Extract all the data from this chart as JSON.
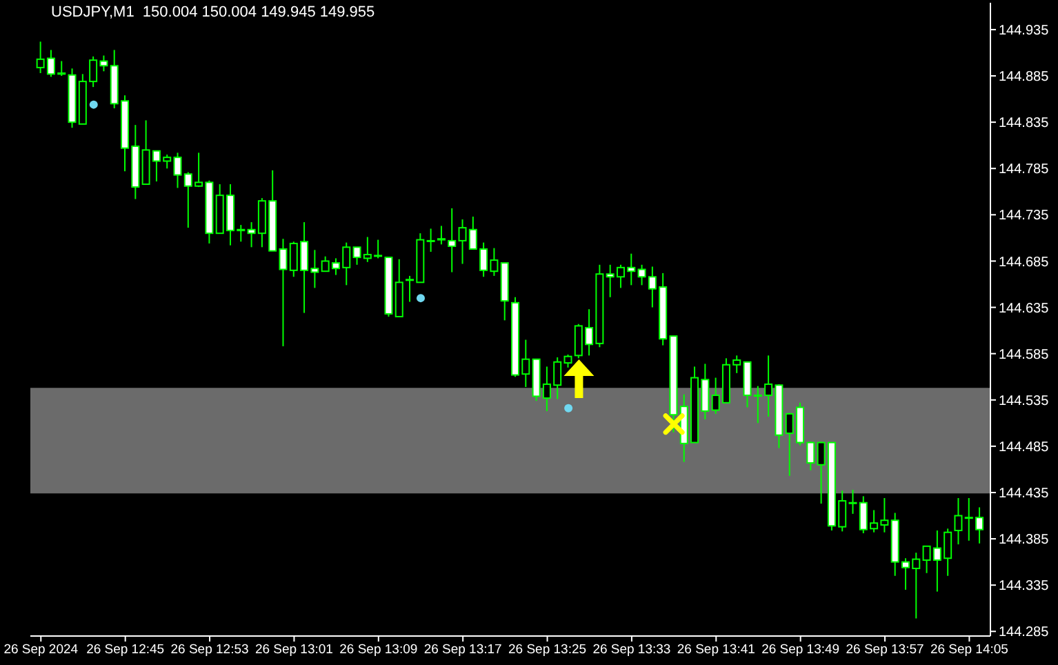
{
  "chart_data": {
    "type": "candlestick",
    "title": "USDJPY,M1  150.004 150.004 149.945 149.955",
    "color": "#00ff00",
    "x": [
      "2024-09-26T12:37",
      "2024-09-26T12:38",
      "2024-09-26T12:39",
      "2024-09-26T12:40",
      "2024-09-26T12:41",
      "2024-09-26T12:42",
      "2024-09-26T12:43",
      "2024-09-26T12:44",
      "2024-09-26T12:45",
      "2024-09-26T12:46",
      "2024-09-26T12:47",
      "2024-09-26T12:48",
      "2024-09-26T12:49",
      "2024-09-26T12:50",
      "2024-09-26T12:51",
      "2024-09-26T12:52",
      "2024-09-26T12:53",
      "2024-09-26T12:54",
      "2024-09-26T12:55",
      "2024-09-26T12:56",
      "2024-09-26T12:57",
      "2024-09-26T12:58",
      "2024-09-26T12:59",
      "2024-09-26T13:00",
      "2024-09-26T13:01",
      "2024-09-26T13:02",
      "2024-09-26T13:03",
      "2024-09-26T13:04",
      "2024-09-26T13:05",
      "2024-09-26T13:06",
      "2024-09-26T13:07",
      "2024-09-26T13:08",
      "2024-09-26T13:09",
      "2024-09-26T13:10",
      "2024-09-26T13:11",
      "2024-09-26T13:12",
      "2024-09-26T13:13",
      "2024-09-26T13:14",
      "2024-09-26T13:15",
      "2024-09-26T13:16",
      "2024-09-26T13:17",
      "2024-09-26T13:18",
      "2024-09-26T13:19",
      "2024-09-26T13:20",
      "2024-09-26T13:21",
      "2024-09-26T13:22",
      "2024-09-26T13:23",
      "2024-09-26T13:24",
      "2024-09-26T13:25",
      "2024-09-26T13:26",
      "2024-09-26T13:27",
      "2024-09-26T13:28",
      "2024-09-26T13:29",
      "2024-09-26T13:30",
      "2024-09-26T13:31",
      "2024-09-26T13:32",
      "2024-09-26T13:33",
      "2024-09-26T13:34",
      "2024-09-26T13:35",
      "2024-09-26T13:36",
      "2024-09-26T13:37",
      "2024-09-26T13:38",
      "2024-09-26T13:39",
      "2024-09-26T13:40",
      "2024-09-26T13:41",
      "2024-09-26T13:42",
      "2024-09-26T13:43",
      "2024-09-26T13:44",
      "2024-09-26T13:45",
      "2024-09-26T13:46",
      "2024-09-26T13:47",
      "2024-09-26T13:48",
      "2024-09-26T13:49",
      "2024-09-26T13:50",
      "2024-09-26T13:51",
      "2024-09-26T13:52",
      "2024-09-26T13:53",
      "2024-09-26T13:54",
      "2024-09-26T13:55",
      "2024-09-26T13:56",
      "2024-09-26T13:57",
      "2024-09-26T13:58",
      "2024-09-26T13:59",
      "2024-09-26T14:00",
      "2024-09-26T14:01",
      "2024-09-26T14:02",
      "2024-09-26T14:03",
      "2024-09-26T14:04",
      "2024-09-26T14:05",
      "2024-09-26T14:06"
    ],
    "ohlc": [
      [
        144.894,
        144.922,
        144.888,
        144.903
      ],
      [
        144.904,
        144.913,
        144.884,
        144.887
      ],
      [
        144.887,
        144.901,
        144.885,
        144.888
      ],
      [
        144.886,
        144.893,
        144.829,
        144.835
      ],
      [
        144.833,
        144.887,
        144.833,
        144.879
      ],
      [
        144.879,
        144.906,
        144.873,
        144.902
      ],
      [
        144.901,
        144.907,
        144.89,
        144.896
      ],
      [
        144.896,
        144.913,
        144.85,
        144.855
      ],
      [
        144.858,
        144.864,
        144.782,
        144.807
      ],
      [
        144.809,
        144.832,
        144.752,
        144.765
      ],
      [
        144.768,
        144.837,
        144.768,
        144.805
      ],
      [
        144.804,
        144.804,
        144.771,
        144.793
      ],
      [
        144.793,
        144.8,
        144.785,
        144.797
      ],
      [
        144.797,
        144.802,
        144.764,
        144.778
      ],
      [
        144.779,
        144.781,
        144.721,
        144.766
      ],
      [
        144.766,
        144.802,
        144.765,
        144.77
      ],
      [
        144.77,
        144.772,
        144.704,
        144.715
      ],
      [
        144.715,
        144.768,
        144.715,
        144.756
      ],
      [
        144.756,
        144.768,
        144.702,
        144.718
      ],
      [
        144.718,
        144.724,
        144.706,
        144.719
      ],
      [
        144.719,
        144.727,
        144.7,
        144.715
      ],
      [
        144.715,
        144.753,
        144.7,
        144.75
      ],
      [
        144.75,
        144.783,
        144.696,
        144.696
      ],
      [
        144.698,
        144.709,
        144.593,
        144.676
      ],
      [
        144.675,
        144.706,
        144.668,
        144.704
      ],
      [
        144.706,
        144.727,
        144.629,
        144.675
      ],
      [
        144.677,
        144.697,
        144.656,
        144.673
      ],
      [
        144.674,
        144.69,
        144.674,
        144.685
      ],
      [
        144.683,
        144.688,
        144.67,
        144.677
      ],
      [
        144.678,
        144.705,
        144.659,
        144.7
      ],
      [
        144.7,
        144.7,
        144.681,
        144.689
      ],
      [
        144.688,
        144.711,
        144.684,
        144.692
      ],
      [
        144.691,
        144.708,
        144.688,
        144.691
      ],
      [
        144.689,
        144.689,
        144.625,
        144.628
      ],
      [
        144.625,
        144.687,
        144.625,
        144.662
      ],
      [
        144.665,
        144.669,
        144.641,
        144.665
      ],
      [
        144.662,
        144.715,
        144.662,
        144.708
      ],
      [
        144.707,
        144.72,
        144.695,
        144.707
      ],
      [
        144.708,
        144.723,
        144.703,
        144.709
      ],
      [
        144.707,
        144.742,
        144.673,
        144.701
      ],
      [
        144.707,
        144.73,
        144.682,
        144.721
      ],
      [
        144.719,
        144.733,
        144.698,
        144.698
      ],
      [
        144.698,
        144.705,
        144.668,
        144.675
      ],
      [
        144.674,
        144.699,
        144.669,
        144.686
      ],
      [
        144.683,
        144.683,
        144.621,
        144.642
      ],
      [
        144.64,
        144.646,
        144.56,
        144.562
      ],
      [
        144.563,
        144.6,
        144.549,
        144.579
      ],
      [
        144.579,
        144.579,
        144.534,
        144.539
      ],
      [
        144.537,
        144.571,
        144.523,
        144.552
      ],
      [
        144.551,
        144.581,
        144.536,
        144.576
      ],
      [
        144.575,
        144.584,
        144.57,
        144.582
      ],
      [
        144.583,
        144.617,
        144.58,
        144.615
      ],
      [
        144.613,
        144.633,
        144.583,
        144.595
      ],
      [
        144.596,
        144.681,
        144.592,
        144.671
      ],
      [
        144.671,
        144.681,
        144.646,
        144.668
      ],
      [
        144.668,
        144.681,
        144.656,
        144.678
      ],
      [
        144.678,
        144.693,
        144.659,
        144.674
      ],
      [
        144.676,
        144.681,
        144.659,
        144.668
      ],
      [
        144.668,
        144.679,
        144.635,
        144.655
      ],
      [
        144.657,
        144.672,
        144.594,
        144.601
      ],
      [
        144.604,
        144.604,
        144.5,
        144.519
      ],
      [
        144.528,
        144.541,
        144.468,
        144.488
      ],
      [
        144.489,
        144.571,
        144.489,
        144.559
      ],
      [
        144.557,
        144.574,
        144.514,
        144.523
      ],
      [
        144.524,
        144.559,
        144.52,
        144.54
      ],
      [
        144.532,
        144.58,
        144.532,
        144.573
      ],
      [
        144.573,
        144.583,
        144.564,
        144.578
      ],
      [
        144.576,
        144.576,
        144.527,
        144.54
      ],
      [
        144.54,
        144.55,
        144.51,
        144.54
      ],
      [
        144.54,
        144.583,
        144.517,
        144.552
      ],
      [
        144.551,
        144.552,
        144.483,
        144.497
      ],
      [
        144.499,
        144.521,
        144.453,
        144.52
      ],
      [
        144.527,
        144.532,
        144.486,
        144.489
      ],
      [
        144.489,
        144.49,
        144.459,
        144.467
      ],
      [
        144.465,
        144.49,
        144.423,
        144.489
      ],
      [
        144.489,
        144.489,
        144.394,
        144.399
      ],
      [
        144.398,
        144.437,
        144.393,
        144.426
      ],
      [
        144.424,
        144.438,
        144.412,
        144.424
      ],
      [
        144.424,
        144.431,
        144.391,
        144.395
      ],
      [
        144.396,
        144.416,
        144.392,
        144.402
      ],
      [
        144.4,
        144.429,
        144.392,
        144.405
      ],
      [
        144.405,
        144.413,
        144.345,
        144.36
      ],
      [
        144.36,
        144.364,
        144.33,
        144.354
      ],
      [
        144.353,
        144.37,
        144.299,
        144.363
      ],
      [
        144.362,
        144.377,
        144.348,
        144.377
      ],
      [
        144.375,
        144.394,
        144.328,
        144.362
      ],
      [
        144.364,
        144.396,
        144.345,
        144.392
      ],
      [
        144.394,
        144.429,
        144.379,
        144.41
      ],
      [
        144.408,
        144.429,
        144.383,
        144.408
      ],
      [
        144.408,
        144.419,
        144.38,
        144.395
      ]
    ],
    "series": [
      {
        "type": "scatter",
        "color": "#70d8f0",
        "marker": "circle",
        "x": [
          "2024-09-26T12:42",
          "2024-09-26T13:13",
          "2024-09-26T13:27"
        ],
        "values": [
          144.854,
          144.645,
          144.526
        ]
      },
      {
        "type": "scatter",
        "color": "#ffff00",
        "marker": "triangle",
        "x": [
          "2024-09-26T13:28"
        ],
        "values": [
          144.558
        ]
      },
      {
        "type": "scatter",
        "color": "#ffff00",
        "marker": "cross",
        "x": [
          "2024-09-26T13:37"
        ],
        "values": [
          144.509
        ]
      }
    ],
    "bands": [
      {
        "axis": "y",
        "from": 144.434,
        "to": 144.548,
        "color": "#6b6b6b"
      }
    ],
    "xlim": [
      "2024-09-26T12:36",
      "2024-09-26T14:07"
    ],
    "xticks": [
      {
        "value": "2024-09-26T12:37",
        "label": "26 Sep 2024"
      },
      {
        "value": "2024-09-26T12:45",
        "label": "26 Sep 12:45"
      },
      {
        "value": "2024-09-26T12:53",
        "label": "26 Sep 12:53"
      },
      {
        "value": "2024-09-26T13:01",
        "label": "26 Sep 13:01"
      },
      {
        "value": "2024-09-26T13:09",
        "label": "26 Sep 13:09"
      },
      {
        "value": "2024-09-26T13:17",
        "label": "26 Sep 13:17"
      },
      {
        "value": "2024-09-26T13:25",
        "label": "26 Sep 13:25"
      },
      {
        "value": "2024-09-26T13:33",
        "label": "26 Sep 13:33"
      },
      {
        "value": "2024-09-26T13:41",
        "label": "26 Sep 13:41"
      },
      {
        "value": "2024-09-26T13:49",
        "label": "26 Sep 13:49"
      },
      {
        "value": "2024-09-26T13:57",
        "label": "26 Sep 13:57"
      },
      {
        "value": "2024-09-26T14:05",
        "label": "26 Sep 14:05"
      }
    ],
    "ylim": [
      144.28,
      144.964
    ],
    "yticks": [
      144.935,
      144.885,
      144.835,
      144.785,
      144.735,
      144.685,
      144.635,
      144.585,
      144.535,
      144.485,
      144.435,
      144.385,
      144.335,
      144.285
    ]
  }
}
